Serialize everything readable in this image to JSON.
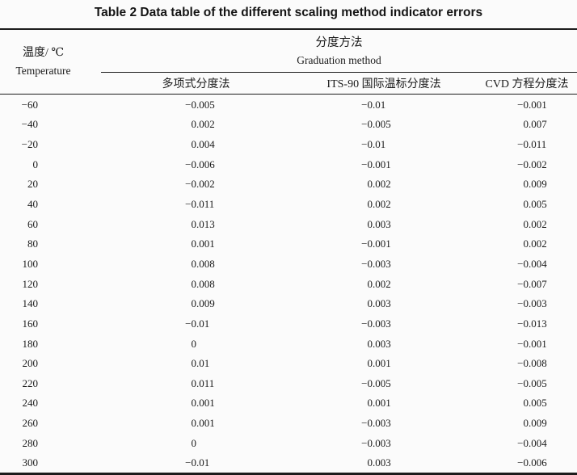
{
  "title": "Table 2 Data table of the different scaling method indicator errors",
  "colors": {
    "text": "#1a1a1a",
    "rule": "#1c1c1c",
    "background": "#fbfbfb"
  },
  "table": {
    "temperature_header": {
      "zh": "温度/ ℃",
      "en": "Temperature"
    },
    "group_header": {
      "zh": "分度方法",
      "en": "Graduation method"
    },
    "method_columns": [
      "多项式分度法",
      "ITS-90 国际温标分度法",
      "CVD 方程分度法"
    ],
    "rows": [
      {
        "temp": "−60",
        "values": [
          "−0.005",
          "−0.01",
          "−0.001"
        ]
      },
      {
        "temp": "−40",
        "values": [
          "0.002",
          "−0.005",
          "0.007"
        ]
      },
      {
        "temp": "−20",
        "values": [
          "0.004",
          "−0.01",
          "−0.011"
        ]
      },
      {
        "temp": "0",
        "values": [
          "−0.006",
          "−0.001",
          "−0.002"
        ]
      },
      {
        "temp": "20",
        "values": [
          "−0.002",
          "0.002",
          "0.009"
        ]
      },
      {
        "temp": "40",
        "values": [
          "−0.011",
          "0.002",
          "0.005"
        ]
      },
      {
        "temp": "60",
        "values": [
          "0.013",
          "0.003",
          "0.002"
        ]
      },
      {
        "temp": "80",
        "values": [
          "0.001",
          "−0.001",
          "0.002"
        ]
      },
      {
        "temp": "100",
        "values": [
          "0.008",
          "−0.003",
          "−0.004"
        ]
      },
      {
        "temp": "120",
        "values": [
          "0.008",
          "0.002",
          "−0.007"
        ]
      },
      {
        "temp": "140",
        "values": [
          "0.009",
          "0.003",
          "−0.003"
        ]
      },
      {
        "temp": "160",
        "values": [
          "−0.01",
          "−0.003",
          "−0.013"
        ]
      },
      {
        "temp": "180",
        "values": [
          "0",
          "0.003",
          "−0.001"
        ]
      },
      {
        "temp": "200",
        "values": [
          "0.01",
          "0.001",
          "−0.008"
        ]
      },
      {
        "temp": "220",
        "values": [
          "0.011",
          "−0.005",
          "−0.005"
        ]
      },
      {
        "temp": "240",
        "values": [
          "0.001",
          "0.001",
          "0.005"
        ]
      },
      {
        "temp": "260",
        "values": [
          "0.001",
          "−0.003",
          "0.009"
        ]
      },
      {
        "temp": "280",
        "values": [
          "0",
          "−0.003",
          "−0.004"
        ]
      },
      {
        "temp": "300",
        "values": [
          "−0.01",
          "0.003",
          "−0.006"
        ]
      }
    ]
  }
}
